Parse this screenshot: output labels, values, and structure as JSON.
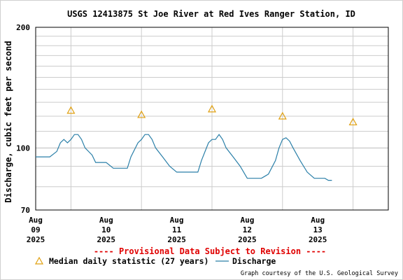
{
  "chart_data": {
    "type": "line",
    "title": "USGS 12413875 St Joe River at Red Ives Ranger Station, ID",
    "ylabel": "Discharge, cubic feet per second",
    "xlabel": "",
    "y_scale": "log",
    "ylim": [
      70,
      200
    ],
    "y_ticks": [
      70,
      100,
      200
    ],
    "xlim": [
      9.5,
      14.5
    ],
    "x_ticks": [
      {
        "x": 9,
        "label": [
          "Aug",
          "09",
          "2025"
        ]
      },
      {
        "x": 10,
        "label": [
          "Aug",
          "10",
          "2025"
        ]
      },
      {
        "x": 11,
        "label": [
          "Aug",
          "11",
          "2025"
        ]
      },
      {
        "x": 12,
        "label": [
          "Aug",
          "12",
          "2025"
        ]
      },
      {
        "x": 13,
        "label": [
          "Aug",
          "13",
          "2025"
        ]
      }
    ],
    "grid": true,
    "series": [
      {
        "name": "Discharge",
        "kind": "line",
        "color": "#2a7fa8",
        "points": [
          [
            9.0,
            95
          ],
          [
            9.1,
            95
          ],
          [
            9.2,
            95
          ],
          [
            9.3,
            98
          ],
          [
            9.35,
            103
          ],
          [
            9.4,
            105
          ],
          [
            9.45,
            103
          ],
          [
            9.5,
            105
          ],
          [
            9.55,
            108
          ],
          [
            9.6,
            108
          ],
          [
            9.65,
            105
          ],
          [
            9.7,
            100
          ],
          [
            9.8,
            96
          ],
          [
            9.85,
            92
          ],
          [
            10.0,
            92
          ],
          [
            10.1,
            89
          ],
          [
            10.2,
            89
          ],
          [
            10.3,
            89
          ],
          [
            10.35,
            95
          ],
          [
            10.45,
            103
          ],
          [
            10.5,
            105
          ],
          [
            10.55,
            108
          ],
          [
            10.6,
            108
          ],
          [
            10.65,
            105
          ],
          [
            10.7,
            100
          ],
          [
            10.8,
            95
          ],
          [
            10.9,
            90
          ],
          [
            11.0,
            87
          ],
          [
            11.2,
            87
          ],
          [
            11.3,
            87
          ],
          [
            11.35,
            93
          ],
          [
            11.45,
            103
          ],
          [
            11.5,
            105
          ],
          [
            11.55,
            105
          ],
          [
            11.6,
            108
          ],
          [
            11.65,
            105
          ],
          [
            11.7,
            100
          ],
          [
            11.8,
            95
          ],
          [
            11.9,
            90
          ],
          [
            12.0,
            84
          ],
          [
            12.1,
            84
          ],
          [
            12.2,
            84
          ],
          [
            12.3,
            86
          ],
          [
            12.4,
            93
          ],
          [
            12.45,
            100
          ],
          [
            12.5,
            105
          ],
          [
            12.55,
            106
          ],
          [
            12.6,
            104
          ],
          [
            12.65,
            100
          ],
          [
            12.75,
            93
          ],
          [
            12.85,
            87
          ],
          [
            12.95,
            84
          ],
          [
            13.0,
            84
          ],
          [
            13.1,
            84
          ],
          [
            13.15,
            83
          ],
          [
            13.2,
            83
          ]
        ]
      },
      {
        "name": "Median daily statistic (27 years)",
        "kind": "marker",
        "color": "#e0a010",
        "points": [
          [
            9.5,
            124
          ],
          [
            10.5,
            121
          ],
          [
            11.5,
            125
          ],
          [
            12.5,
            120
          ],
          [
            13.5,
            116
          ]
        ]
      }
    ],
    "legend_position": "bottom",
    "subtitle_note": "---- Provisional Data Subject to Revision ----",
    "credit": "Graph courtesy of the U.S. Geological Survey"
  },
  "legend": {
    "median_label": "Median daily statistic (27 years)",
    "discharge_label": "Discharge"
  }
}
